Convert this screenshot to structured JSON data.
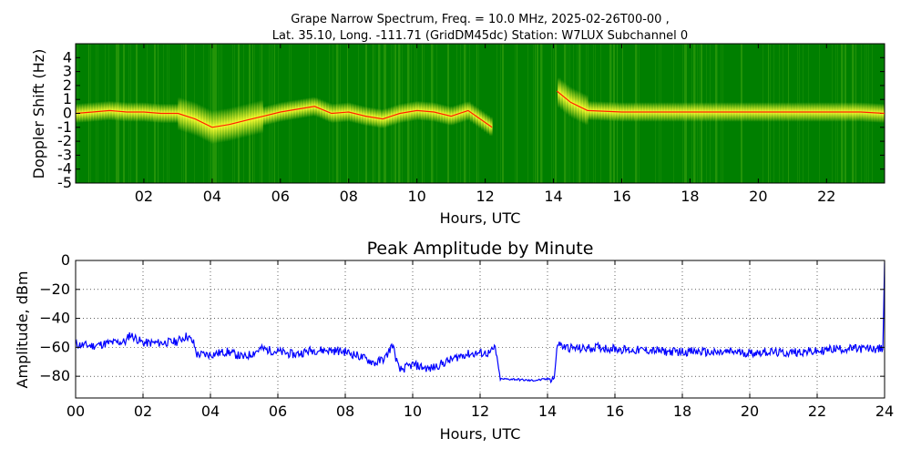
{
  "chart_data": [
    {
      "type": "heatmap",
      "title_line1": "Grape Narrow Spectrum, Freq. = 10.0 MHz, 2025-02-26T00-00 ,",
      "title_line2": "Lat.  35.10, Long. -111.71 (GridDM45dc) Station: W7LUX Subchannel 0",
      "xlabel": "Hours, UTC",
      "ylabel": "Doppler Shift (Hz)",
      "xlim": [
        0,
        23.7
      ],
      "ylim": [
        -5,
        5
      ],
      "x_ticks": [
        "02",
        "04",
        "06",
        "08",
        "10",
        "12",
        "14",
        "16",
        "18",
        "20",
        "22"
      ],
      "y_ticks": [
        "4",
        "3",
        "2",
        "1",
        "0",
        "-1",
        "-2",
        "-3",
        "-4",
        "-5"
      ],
      "colors": {
        "background": "#007f00",
        "mid": "#8fcf1f",
        "peak": "#ffff30",
        "trace": "#ff2000"
      },
      "trace": {
        "x": [
          0,
          0.5,
          1,
          1.5,
          2,
          2.5,
          3,
          3.5,
          4,
          4.5,
          5,
          5.5,
          6,
          6.5,
          7,
          7.5,
          8,
          8.5,
          9,
          9.5,
          10,
          10.5,
          11,
          11.5,
          12.2,
          14.1,
          14.5,
          15,
          16,
          17,
          18,
          19,
          20,
          21,
          22,
          23,
          23.7
        ],
        "y": [
          0,
          0.1,
          0.2,
          0.1,
          0.1,
          0,
          0,
          -0.4,
          -1.0,
          -0.8,
          -0.5,
          -0.2,
          0.1,
          0.3,
          0.5,
          0,
          0.1,
          -0.2,
          -0.4,
          0,
          0.2,
          0.1,
          -0.2,
          0.2,
          -1.0,
          1.6,
          0.8,
          0.2,
          0.1,
          0.1,
          0.1,
          0.1,
          0.1,
          0.1,
          0.1,
          0.1,
          0
        ]
      }
    },
    {
      "type": "line",
      "title": "Peak Amplitude by Minute",
      "xlabel": "Hours, UTC",
      "ylabel": "Amplitude, dBm",
      "xlim": [
        0,
        24
      ],
      "ylim": [
        -95,
        0
      ],
      "grid": true,
      "x_ticks": [
        "00",
        "02",
        "04",
        "06",
        "08",
        "10",
        "12",
        "14",
        "16",
        "18",
        "20",
        "22",
        "24"
      ],
      "y_ticks": [
        "0",
        "−20",
        "−40",
        "−60",
        "−80"
      ],
      "y_tick_values": [
        0,
        -20,
        -40,
        -60,
        -80
      ],
      "series": [
        {
          "color": "#0000ff",
          "x": [
            0,
            0.5,
            1,
            1.5,
            1.6,
            2,
            2.5,
            3,
            3.3,
            3.5,
            3.6,
            4,
            4.5,
            5,
            5.5,
            6,
            6.5,
            7,
            7.5,
            8,
            8.4,
            8.9,
            9.2,
            9.4,
            9.6,
            10,
            10.5,
            11,
            11.5,
            12,
            12.3,
            12.45,
            12.6,
            13,
            13.5,
            14.0,
            14.2,
            14.3,
            14.5,
            15,
            15.5,
            16,
            16.5,
            17,
            17.5,
            18,
            18.5,
            19,
            19.5,
            20,
            20.5,
            21,
            21.5,
            22,
            22.5,
            23,
            23.5,
            23.95,
            24
          ],
          "y": [
            -58,
            -59,
            -57,
            -56,
            -51,
            -57,
            -57,
            -56,
            -52,
            -57,
            -65,
            -65,
            -63,
            -67,
            -61,
            -63,
            -65,
            -62,
            -62,
            -63,
            -66,
            -71,
            -67,
            -58,
            -76,
            -72,
            -75,
            -70,
            -65,
            -64,
            -64,
            -60,
            -82,
            -82,
            -83,
            -82,
            -81,
            -57,
            -60,
            -61,
            -60,
            -61,
            -62,
            -62,
            -63,
            -63,
            -63,
            -64,
            -63,
            -64,
            -63,
            -64,
            -63,
            -63,
            -61,
            -61,
            -61,
            -61,
            -1
          ]
        }
      ]
    }
  ]
}
